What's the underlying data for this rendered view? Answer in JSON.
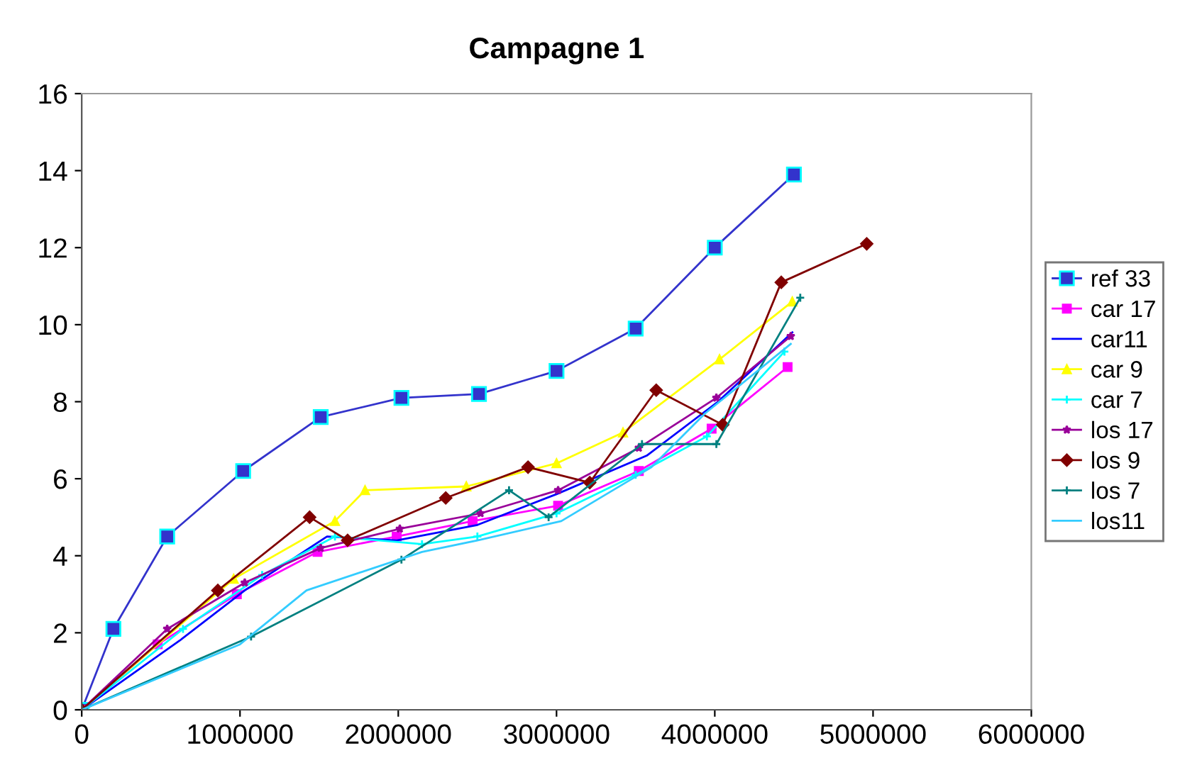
{
  "chart_data": {
    "type": "line",
    "title": "Campagne 1",
    "xlim": [
      0,
      6000000
    ],
    "xticks": [
      0,
      1000000,
      2000000,
      3000000,
      4000000,
      5000000,
      6000000
    ],
    "ylim": [
      0,
      16
    ],
    "yticks": [
      0,
      2,
      4,
      6,
      8,
      10,
      12,
      14,
      16
    ],
    "grid": false,
    "legend": "right",
    "series": [
      {
        "name": "ref 33",
        "color": "#3333cc",
        "marker": "square",
        "x": [
          0,
          200000,
          540000,
          1020000,
          1510000,
          2020000,
          2510000,
          3000000,
          3500000,
          4000000,
          4500000
        ],
        "values": [
          0,
          2.1,
          4.5,
          6.2,
          7.6,
          8.1,
          8.2,
          8.8,
          9.9,
          12.0,
          13.9
        ]
      },
      {
        "name": "car 17",
        "color": "#ff00ff",
        "marker": "square",
        "x": [
          0,
          480000,
          980000,
          1490000,
          1990000,
          2470000,
          3010000,
          3520000,
          3980000,
          4460000
        ],
        "values": [
          0,
          1.7,
          3.0,
          4.1,
          4.5,
          4.9,
          5.3,
          6.2,
          7.3,
          8.9
        ]
      },
      {
        "name": "car11",
        "color": "#0000ff",
        "marker": "none",
        "x": [
          0,
          620000,
          1030000,
          1550000,
          1990000,
          2500000,
          3000000,
          3570000,
          4020000,
          4490000
        ],
        "values": [
          0,
          1.8,
          3.1,
          4.5,
          4.4,
          4.8,
          5.6,
          6.6,
          8.0,
          9.8
        ]
      },
      {
        "name": "car 9",
        "color": "#ffff00",
        "marker": "triangle",
        "x": [
          0,
          960000,
          1600000,
          1790000,
          2430000,
          3000000,
          3420000,
          4030000,
          4490000
        ],
        "values": [
          0,
          3.4,
          4.9,
          5.7,
          5.8,
          6.4,
          7.2,
          9.1,
          10.6
        ]
      },
      {
        "name": "car 7",
        "color": "#00ffff",
        "marker": "cross",
        "x": [
          0,
          640000,
          1140000,
          1600000,
          2150000,
          2500000,
          3000000,
          3500000,
          3950000,
          4440000
        ],
        "values": [
          0,
          2.1,
          3.5,
          4.5,
          4.3,
          4.5,
          5.1,
          6.1,
          7.1,
          9.3
        ]
      },
      {
        "name": "los 17",
        "color": "#990099",
        "marker": "star",
        "x": [
          0,
          540000,
          1030000,
          1510000,
          2010000,
          2520000,
          3010000,
          3520000,
          4010000,
          4480000
        ],
        "values": [
          0,
          2.1,
          3.3,
          4.2,
          4.7,
          5.1,
          5.7,
          6.8,
          8.1,
          9.7
        ]
      },
      {
        "name": "los 9",
        "color": "#800000",
        "marker": "diamond",
        "x": [
          0,
          860000,
          1440000,
          1680000,
          2300000,
          2820000,
          3210000,
          3630000,
          4050000,
          4420000,
          4960000
        ],
        "values": [
          0,
          3.1,
          5.0,
          4.4,
          5.5,
          6.3,
          5.9,
          8.3,
          7.4,
          11.1,
          12.1
        ]
      },
      {
        "name": "los 7",
        "color": "#008080",
        "marker": "cross",
        "x": [
          0,
          1070000,
          2020000,
          2700000,
          2950000,
          3540000,
          4010000,
          4540000
        ],
        "values": [
          0,
          1.9,
          3.9,
          5.7,
          5.0,
          6.9,
          6.9,
          10.7
        ]
      },
      {
        "name": "los11",
        "color": "#33ccff",
        "marker": "none",
        "x": [
          0,
          1000000,
          1420000,
          2150000,
          2500000,
          3030000,
          3600000,
          3940000,
          4480000
        ],
        "values": [
          0,
          1.7,
          3.1,
          4.1,
          4.4,
          4.9,
          6.3,
          7.7,
          9.5
        ]
      }
    ]
  }
}
